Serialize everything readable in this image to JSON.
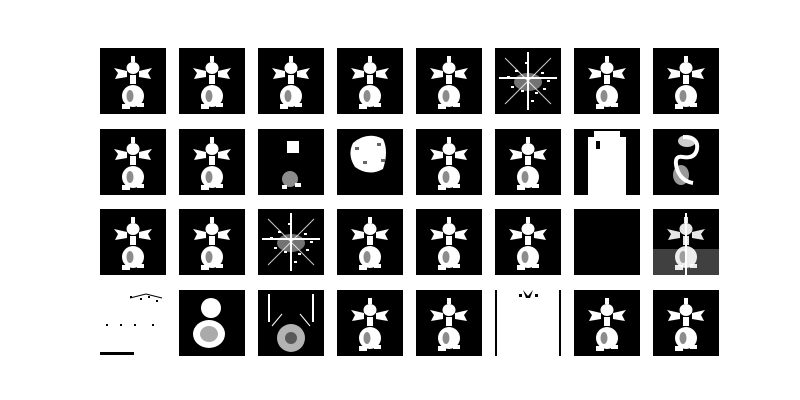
{
  "figure": {
    "rows": 4,
    "columns": 8,
    "background_color": "#ffffff",
    "cell_colors": {
      "foreground": "#ffffff",
      "background": "#000000"
    },
    "panels": [
      {
        "variant": "ragdoll"
      },
      {
        "variant": "ragdoll"
      },
      {
        "variant": "ragdoll"
      },
      {
        "variant": "ragdoll"
      },
      {
        "variant": "ragdoll"
      },
      {
        "variant": "noise-cross"
      },
      {
        "variant": "ragdoll"
      },
      {
        "variant": "ragdoll"
      },
      {
        "variant": "ragdoll"
      },
      {
        "variant": "ragdoll"
      },
      {
        "variant": "partial-sparse"
      },
      {
        "variant": "blob"
      },
      {
        "variant": "ragdoll"
      },
      {
        "variant": "ragdoll"
      },
      {
        "variant": "bright-block"
      },
      {
        "variant": "swirl"
      },
      {
        "variant": "ragdoll"
      },
      {
        "variant": "ragdoll"
      },
      {
        "variant": "noise-cross"
      },
      {
        "variant": "ragdoll"
      },
      {
        "variant": "ragdoll"
      },
      {
        "variant": "ragdoll"
      },
      {
        "variant": "blank-dark"
      },
      {
        "variant": "ragdoll-faded"
      },
      {
        "variant": "blank-light"
      },
      {
        "variant": "round-body"
      },
      {
        "variant": "hollow-frame"
      },
      {
        "variant": "ragdoll"
      },
      {
        "variant": "ragdoll"
      },
      {
        "variant": "bright-strip"
      },
      {
        "variant": "ragdoll"
      },
      {
        "variant": "ragdoll"
      }
    ]
  }
}
